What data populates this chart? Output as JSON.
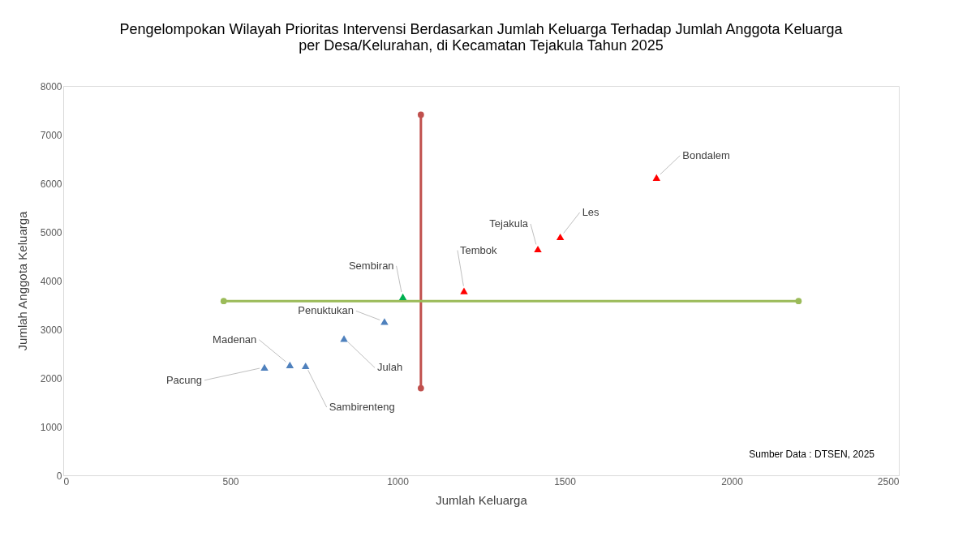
{
  "chart_data": {
    "type": "scatter",
    "title": [
      "Pengelompokan Wilayah Prioritas Intervensi Berdasarkan Jumlah Keluarga Terhadap Jumlah Anggota Keluarga",
      "per Desa/Kelurahan, di Kecamatan Tejakula Tahun 2025"
    ],
    "xlabel": "Jumlah Keluarga",
    "ylabel": "Jumlah Anggota Keluarga",
    "xlim": [
      0,
      2500
    ],
    "xticks": [
      0,
      500,
      1000,
      1500,
      2000,
      2500
    ],
    "ylim": [
      0,
      8000
    ],
    "yticks": [
      0,
      1000,
      2000,
      3000,
      4000,
      5000,
      6000,
      7000,
      8000
    ],
    "grid": false,
    "legend": false,
    "marker": "triangle",
    "series": [
      {
        "type": "line",
        "color": "#c0504d",
        "marker": "circle",
        "x": [
          1070,
          1070
        ],
        "values": [
          1790,
          7410
        ]
      },
      {
        "type": "line",
        "color": "#9bbb59",
        "marker": "circle",
        "x": [
          480,
          2200
        ],
        "values": [
          3580,
          3580
        ]
      },
      {
        "type": "scatter",
        "color": "#4f81bd",
        "x": [
          602,
          678,
          725,
          840,
          961
        ],
        "values": [
          2220,
          2270,
          2250,
          2810,
          3160
        ]
      },
      {
        "type": "scatter",
        "color": "#00b050",
        "x": [
          1016
        ],
        "values": [
          3670
        ]
      },
      {
        "type": "scatter",
        "color": "#ff0000",
        "x": [
          1199,
          1420,
          1487,
          1775
        ],
        "values": [
          3790,
          4650,
          4900,
          6120
        ]
      }
    ],
    "annotations": [
      {
        "text": "Pacung",
        "x": 602,
        "y": 2220
      },
      {
        "text": "Madenan",
        "x": 678,
        "y": 2270
      },
      {
        "text": "Sambirenteng",
        "x": 725,
        "y": 2250
      },
      {
        "text": "Julah",
        "x": 840,
        "y": 2810
      },
      {
        "text": "Penuktukan",
        "x": 961,
        "y": 3160
      },
      {
        "text": "Sembiran",
        "x": 1016,
        "y": 3670
      },
      {
        "text": "Tembok",
        "x": 1199,
        "y": 3790
      },
      {
        "text": "Tejakula",
        "x": 1420,
        "y": 4650
      },
      {
        "text": "Les",
        "x": 1487,
        "y": 4900
      },
      {
        "text": "Bondalem",
        "x": 1775,
        "y": 6120
      },
      "Sumber Data : DTSEN, 2025"
    ]
  }
}
